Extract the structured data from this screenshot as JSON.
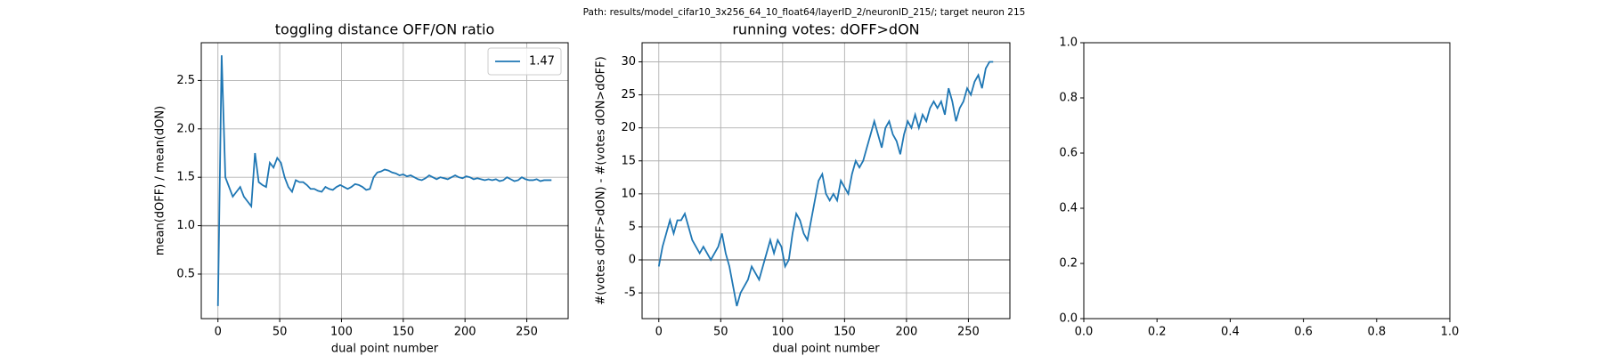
{
  "suptitle": "Path: results/model_cifar10_3x256_64_10_float64/layerID_2/neuronID_215/; target neuron 215",
  "chart_data": [
    {
      "type": "line",
      "title": "toggling distance OFF/ON ratio",
      "xlabel": "dual point number",
      "ylabel": "mean(dOFF) / mean(dON)",
      "x": [
        0,
        3,
        6,
        9,
        12,
        15,
        18,
        21,
        24,
        27,
        30,
        33,
        36,
        39,
        42,
        45,
        48,
        51,
        54,
        57,
        60,
        63,
        66,
        69,
        72,
        75,
        78,
        81,
        84,
        87,
        90,
        93,
        96,
        99,
        102,
        105,
        108,
        111,
        114,
        117,
        120,
        123,
        126,
        129,
        132,
        135,
        138,
        141,
        144,
        147,
        150,
        153,
        156,
        159,
        162,
        165,
        168,
        171,
        174,
        177,
        180,
        183,
        186,
        189,
        192,
        195,
        198,
        201,
        204,
        207,
        210,
        213,
        216,
        219,
        222,
        225,
        228,
        231,
        234,
        237,
        240,
        243,
        246,
        249,
        252,
        255,
        258,
        261,
        264,
        267,
        270
      ],
      "series": [
        {
          "name": "1.47",
          "color": "#1f77b4",
          "values": [
            0.17,
            2.76,
            1.5,
            1.4,
            1.3,
            1.35,
            1.4,
            1.3,
            1.25,
            1.2,
            1.75,
            1.45,
            1.42,
            1.4,
            1.65,
            1.6,
            1.7,
            1.65,
            1.5,
            1.4,
            1.35,
            1.47,
            1.45,
            1.45,
            1.42,
            1.38,
            1.38,
            1.36,
            1.35,
            1.4,
            1.38,
            1.37,
            1.4,
            1.42,
            1.4,
            1.38,
            1.4,
            1.43,
            1.42,
            1.4,
            1.37,
            1.38,
            1.5,
            1.55,
            1.56,
            1.58,
            1.57,
            1.55,
            1.54,
            1.52,
            1.53,
            1.51,
            1.52,
            1.5,
            1.48,
            1.47,
            1.49,
            1.52,
            1.5,
            1.48,
            1.5,
            1.49,
            1.48,
            1.5,
            1.52,
            1.5,
            1.49,
            1.51,
            1.5,
            1.48,
            1.49,
            1.48,
            1.47,
            1.48,
            1.47,
            1.48,
            1.46,
            1.47,
            1.5,
            1.48,
            1.46,
            1.47,
            1.5,
            1.48,
            1.47,
            1.47,
            1.48,
            1.46,
            1.47,
            1.47,
            1.47
          ]
        }
      ],
      "hline": 1,
      "hline_color": "#808080",
      "xlim": [
        -13.5,
        283.5
      ],
      "ylim": [
        0.04,
        2.89
      ],
      "xticks": [
        0,
        50,
        100,
        150,
        200,
        250
      ],
      "yticks": [
        0.5,
        {
          "value": 1,
          "label": "1.0"
        },
        1.5,
        {
          "value": 2,
          "label": "2.0"
        },
        2.5
      ],
      "grid": true,
      "legend": "upper right"
    },
    {
      "type": "line",
      "title": "running votes: dOFF>dON",
      "xlabel": "dual point number",
      "ylabel": "#(votes dOFF>dON) - #(votes dON>dOFF)",
      "x": [
        0,
        3,
        6,
        9,
        12,
        15,
        18,
        21,
        24,
        27,
        30,
        33,
        36,
        39,
        42,
        45,
        48,
        51,
        54,
        57,
        60,
        63,
        66,
        69,
        72,
        75,
        78,
        81,
        84,
        87,
        90,
        93,
        96,
        99,
        102,
        105,
        108,
        111,
        114,
        117,
        120,
        123,
        126,
        129,
        132,
        135,
        138,
        141,
        144,
        147,
        150,
        153,
        156,
        159,
        162,
        165,
        168,
        171,
        174,
        177,
        180,
        183,
        186,
        189,
        192,
        195,
        198,
        201,
        204,
        207,
        210,
        213,
        216,
        219,
        222,
        225,
        228,
        231,
        234,
        237,
        240,
        243,
        246,
        249,
        252,
        255,
        258,
        261,
        264,
        267,
        270
      ],
      "series": [
        {
          "color": "#1f77b4",
          "values": [
            -1,
            2,
            4,
            6,
            4,
            6,
            6,
            7,
            5,
            3,
            2,
            1,
            2,
            1,
            0,
            1,
            2,
            4,
            1,
            -1,
            -4,
            -7,
            -5,
            -4,
            -3,
            -1,
            -2,
            -3,
            -1,
            1,
            3,
            1,
            3,
            2,
            -1,
            0,
            4,
            7,
            6,
            4,
            3,
            6,
            9,
            12,
            13,
            10,
            9,
            10,
            9,
            12,
            11,
            10,
            13,
            15,
            14,
            15,
            17,
            19,
            21,
            19,
            17,
            20,
            21,
            19,
            18,
            16,
            19,
            21,
            20,
            22,
            20,
            22,
            21,
            23,
            24,
            23,
            24,
            22,
            26,
            24,
            21,
            23,
            24,
            26,
            25,
            27,
            28,
            26,
            29,
            30,
            30
          ]
        }
      ],
      "hline": 0,
      "hline_color": "#808080",
      "xlim": [
        -13.5,
        283.5
      ],
      "ylim": [
        -8.9,
        32.9
      ],
      "xticks": [
        0,
        50,
        100,
        150,
        200,
        250
      ],
      "yticks": [
        -5,
        0,
        5,
        10,
        15,
        20,
        25,
        30
      ],
      "grid": true
    },
    {
      "type": "line",
      "series": [],
      "xlim": [
        0,
        1
      ],
      "ylim": [
        0,
        1
      ],
      "xticks": [
        {
          "value": 0,
          "label": "0.0"
        },
        0.2,
        0.4,
        0.6,
        0.8,
        {
          "value": 1,
          "label": "1.0"
        }
      ],
      "yticks": [
        {
          "value": 0,
          "label": "0.0"
        },
        0.2,
        0.4,
        0.6,
        0.8,
        {
          "value": 1,
          "label": "1.0"
        }
      ],
      "grid": false
    }
  ]
}
